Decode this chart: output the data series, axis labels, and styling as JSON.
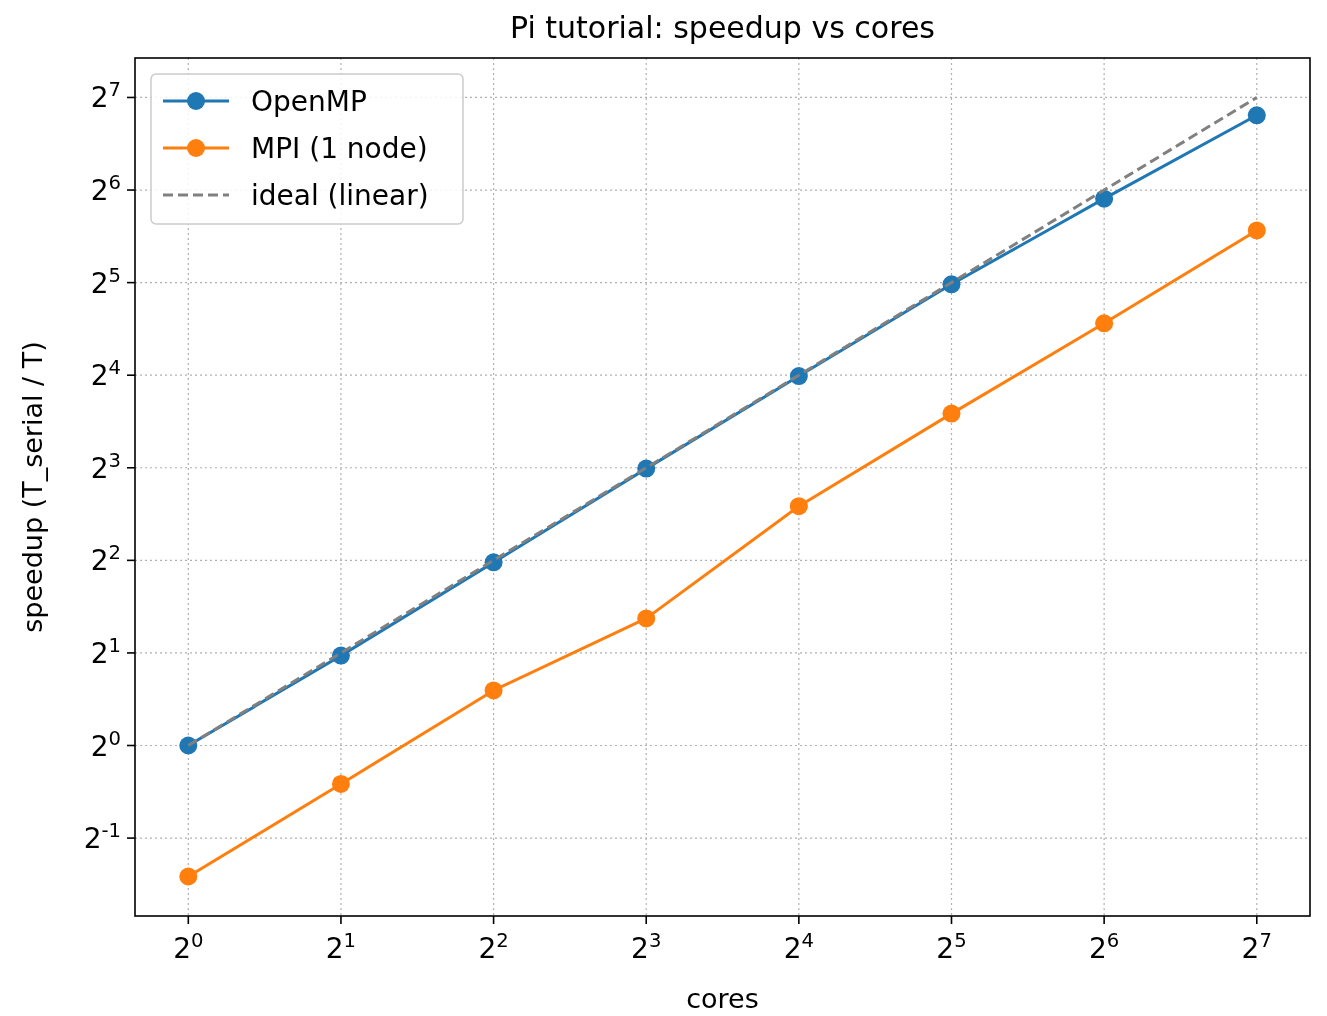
{
  "chart_data": {
    "type": "line",
    "title": "Pi tutorial: speedup vs cores",
    "xlabel": "cores",
    "ylabel": "speedup (T_serial / T)",
    "x": [
      1,
      2,
      4,
      8,
      16,
      32,
      64,
      128
    ],
    "series": [
      {
        "name": "OpenMP",
        "color": "#1f77b4",
        "values": [
          1,
          1.96,
          3.94,
          7.95,
          15.9,
          31.6,
          60,
          112
        ],
        "marker": "circle",
        "line_style": "solid"
      },
      {
        "name": "MPI (1 node)",
        "color": "#ff7f0e",
        "values": [
          0.375,
          0.75,
          1.51,
          2.59,
          6.0,
          12.0,
          23.6,
          47.3
        ],
        "marker": "circle",
        "line_style": "solid"
      },
      {
        "name": "ideal (linear)",
        "color": "#808080",
        "values": [
          1,
          2,
          4,
          8,
          16,
          32,
          64,
          128
        ],
        "marker": "none",
        "line_style": "dashed"
      }
    ],
    "log": "xy",
    "xlim": [
      0.785,
      163
    ],
    "ylim": [
      0.279,
      172
    ],
    "xticks": [
      {
        "value": 1,
        "label": "2$^{0}$"
      },
      {
        "value": 2,
        "label": "2$^{1}$"
      },
      {
        "value": 4,
        "label": "2$^{2}$"
      },
      {
        "value": 8,
        "label": "2$^{3}$"
      },
      {
        "value": 16,
        "label": "2$^{4}$"
      },
      {
        "value": 32,
        "label": "2$^{5}$"
      },
      {
        "value": 64,
        "label": "2$^{6}$"
      },
      {
        "value": 128,
        "label": "2$^{7}$"
      }
    ],
    "yticks": [
      {
        "value": 0.5,
        "label": "2$^{-1}$"
      },
      {
        "value": 1,
        "label": "2$^{0}$"
      },
      {
        "value": 2,
        "label": "2$^{1}$"
      },
      {
        "value": 4,
        "label": "2$^{2}$"
      },
      {
        "value": 8,
        "label": "2$^{3}$"
      },
      {
        "value": 16,
        "label": "2$^{4}$"
      },
      {
        "value": 32,
        "label": "2$^{5}$"
      },
      {
        "value": 64,
        "label": "2$^{6}$"
      },
      {
        "value": 128,
        "label": "2$^{7}$"
      }
    ],
    "grid": true,
    "legend": "top left"
  }
}
